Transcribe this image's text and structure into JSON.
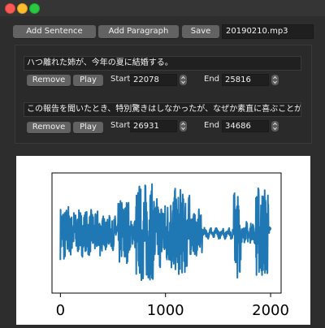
{
  "toolbar": {
    "add_sentence_label": "Add Sentence",
    "add_paragraph_label": "Add Paragraph",
    "save_label": "Save",
    "filename_value": "20190210.mp3"
  },
  "sentences": [
    {
      "text": "ハつ離れた姉が、今年の夏に結婚する。",
      "remove_label": "Remove",
      "play_label": "Play",
      "start_label": "Start",
      "start_value": "22078",
      "end_label": "End",
      "end_value": "25816"
    },
    {
      "text": "この報告を聞いたとき、特別驚きはしなかったが、なぜか素直に喜ぶことができなか",
      "remove_label": "Remove",
      "play_label": "Play",
      "start_label": "Start",
      "start_value": "26931",
      "end_label": "End",
      "end_value": "34686"
    }
  ],
  "chart_data": {
    "type": "line",
    "x_ticks": [
      "0",
      "1000",
      "2000"
    ],
    "xlim": [
      -80,
      2100
    ],
    "ylim": [
      -1.0,
      1.0
    ],
    "color": "#1f77b4",
    "grid": false
  }
}
